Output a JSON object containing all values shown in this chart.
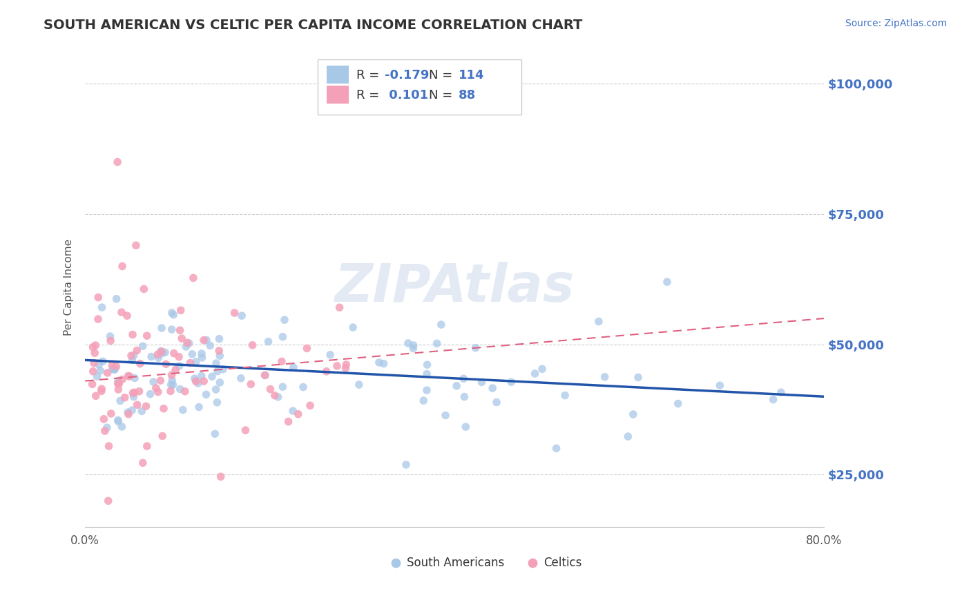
{
  "title": "SOUTH AMERICAN VS CELTIC PER CAPITA INCOME CORRELATION CHART",
  "source": "Source: ZipAtlas.com",
  "ylabel": "Per Capita Income",
  "xlim": [
    0.0,
    0.8
  ],
  "ylim": [
    15000,
    107000
  ],
  "yticks": [
    25000,
    50000,
    75000,
    100000
  ],
  "ytick_labels": [
    "$25,000",
    "$50,000",
    "$75,000",
    "$100,000"
  ],
  "xticks": [
    0.0,
    0.2,
    0.4,
    0.6,
    0.8
  ],
  "xtick_labels": [
    "0.0%",
    "",
    "",
    "",
    "80.0%"
  ],
  "south_americans_R": -0.179,
  "south_americans_N": 114,
  "celtics_R": 0.101,
  "celtics_N": 88,
  "blue_color": "#a8c8e8",
  "pink_color": "#f4a0b8",
  "blue_line_color": "#2255aa",
  "pink_line_color": "#e06080",
  "watermark": "ZIPAtlas",
  "blue_trend_x0": 0.0,
  "blue_trend_y0": 47000,
  "blue_trend_x1": 0.8,
  "blue_trend_y1": 40000,
  "pink_trend_x0": 0.0,
  "pink_trend_y0": 43000,
  "pink_trend_x1": 0.8,
  "pink_trend_y1": 55000
}
